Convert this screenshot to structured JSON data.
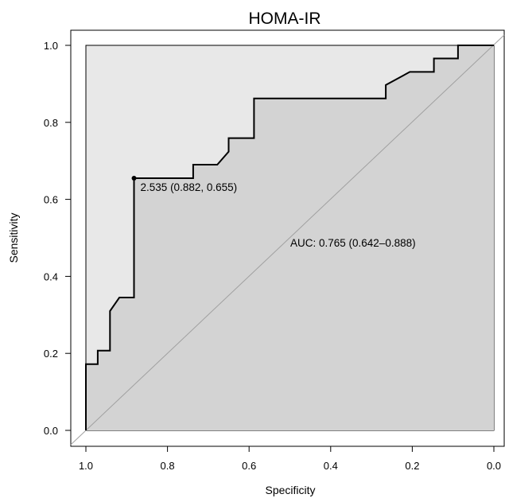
{
  "chart_data": {
    "type": "line",
    "title": "HOMA-IR",
    "xlabel": "Specificity",
    "ylabel": "Sensitivity",
    "x_reversed": true,
    "xlim": [
      1.0,
      0.0
    ],
    "ylim": [
      0.0,
      1.0
    ],
    "xticks": [
      "1.0",
      "0.8",
      "0.6",
      "0.4",
      "0.2",
      "0.0"
    ],
    "yticks": [
      "0.0",
      "0.2",
      "0.4",
      "0.6",
      "0.8",
      "1.0"
    ],
    "grid": false,
    "series": [
      {
        "role": "roc-curve",
        "specificity": [
          1.0,
          1.0,
          0.971,
          0.971,
          0.941,
          0.941,
          0.918,
          0.918,
          0.882,
          0.882,
          0.737,
          0.737,
          0.678,
          0.65,
          0.65,
          0.588,
          0.588,
          0.265,
          0.265,
          0.206,
          0.147,
          0.147,
          0.118,
          0.088,
          0.088,
          0.0
        ],
        "sensitivity": [
          0.0,
          0.172,
          0.172,
          0.207,
          0.207,
          0.31,
          0.345,
          0.345,
          0.345,
          0.655,
          0.655,
          0.69,
          0.69,
          0.724,
          0.759,
          0.759,
          0.862,
          0.862,
          0.897,
          0.931,
          0.931,
          0.966,
          0.966,
          0.966,
          1.0,
          1.0
        ]
      }
    ],
    "diagonal": {
      "from": [
        1.0,
        0.0
      ],
      "to": [
        0.0,
        1.0
      ],
      "color": "#a0a0a0"
    },
    "best_threshold": {
      "threshold": "2.535",
      "specificity": 0.882,
      "sensitivity": 0.655,
      "label": "2.535 (0.882, 0.655)"
    },
    "auc_label": "AUC: 0.765 (0.642–0.888)",
    "colors": {
      "panel_border": "#000000",
      "outer_region_fill": "#e8e8e8",
      "auc_region_fill": "#d3d3d3",
      "curve": "#000000",
      "diagonal": "#a0a0a0"
    }
  }
}
